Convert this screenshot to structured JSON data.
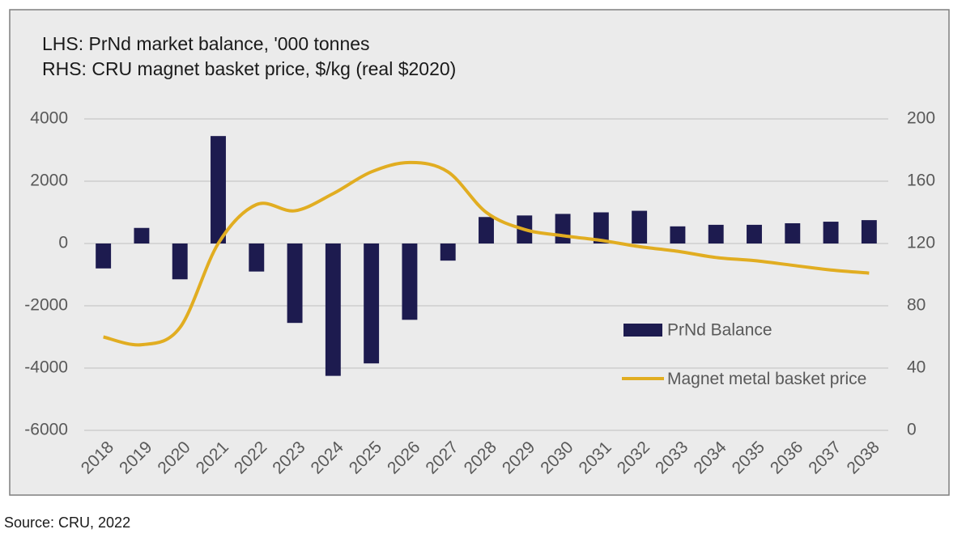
{
  "chart_data": {
    "type": "bar_line",
    "title_lines": [
      "LHS: PrNd market balance, '000 tonnes",
      "RHS: CRU magnet basket price, $/kg (real $2020)"
    ],
    "categories": [
      "2018",
      "2019",
      "2020",
      "2021",
      "2022",
      "2023",
      "2024",
      "2025",
      "2026",
      "2027",
      "2028",
      "2029",
      "2030",
      "2031",
      "2032",
      "2033",
      "2034",
      "2035",
      "2036",
      "2037",
      "2038"
    ],
    "series": [
      {
        "name": "PrNd Balance",
        "type": "bar",
        "color": "#1d1b4f",
        "values": [
          -800,
          500,
          -1150,
          3450,
          -900,
          -2550,
          -4250,
          -3850,
          -2450,
          -550,
          850,
          900,
          950,
          1000,
          1050,
          550,
          600,
          600,
          650,
          700,
          750
        ]
      },
      {
        "name": "Magnet metal basket price",
        "type": "line",
        "axis": "y2",
        "color": "#e1ad21",
        "values": [
          60,
          55,
          66,
          120,
          145,
          141,
          152,
          166,
          172,
          166,
          140,
          129,
          125,
          122,
          118,
          115,
          111,
          109,
          106,
          103,
          101
        ]
      }
    ],
    "ylim": [
      -6000,
      4000
    ],
    "yticks": [
      -6000,
      -4000,
      -2000,
      0,
      2000,
      4000
    ],
    "y2lim": [
      0,
      200
    ],
    "y2ticks": [
      0,
      40,
      80,
      120,
      160,
      200
    ],
    "grid": true,
    "source": "Source: CRU, 2022"
  }
}
